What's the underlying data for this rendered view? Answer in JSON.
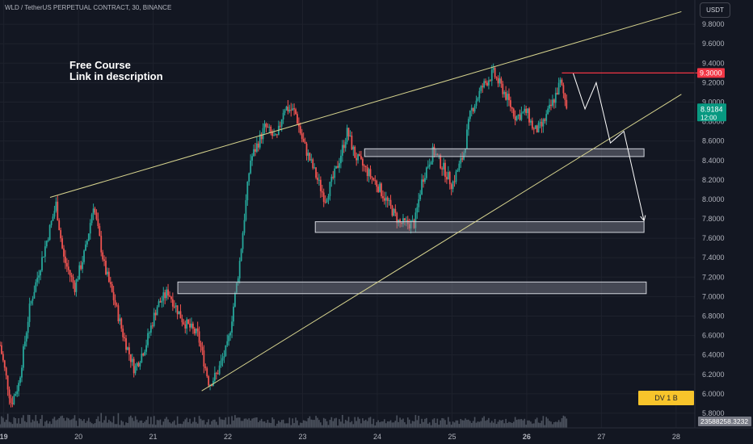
{
  "header": {
    "title": "WLD / TetherUS PERPETUAL CONTRACT, 30, BINANCE"
  },
  "annotation": {
    "line1": "Free Course",
    "line2": "Link in description"
  },
  "scale_button": "USDT",
  "badge": "DV 1 B",
  "price_labels": {
    "target": "9.3000",
    "target_color": "#f23645",
    "current": "8.9184",
    "countdown": "12:00",
    "current_color": "#089981"
  },
  "volume_label": "23588258.3232",
  "colors": {
    "up": "#26a69a",
    "down": "#ef5350",
    "channel": "#d8d58f",
    "projection": "#ffffff"
  },
  "chart_data": {
    "type": "candlestick",
    "title": "WLD / TetherUS PERPETUAL CONTRACT, 30, BINANCE",
    "y_ticks": [
      "9.8000",
      "9.6000",
      "9.4000",
      "9.2000",
      "9.0000",
      "8.8000",
      "8.6000",
      "8.4000",
      "8.2000",
      "8.0000",
      "7.8000",
      "7.6000",
      "7.4000",
      "7.2000",
      "7.0000",
      "6.8000",
      "6.6000",
      "6.4000",
      "6.2000",
      "6.0000",
      "5.8000"
    ],
    "x_ticks": [
      {
        "label": "19",
        "day": 19,
        "bold": true
      },
      {
        "label": "20",
        "day": 20
      },
      {
        "label": "21",
        "day": 21
      },
      {
        "label": "22",
        "day": 22
      },
      {
        "label": "23",
        "day": 23
      },
      {
        "label": "24",
        "day": 24
      },
      {
        "label": "25",
        "day": 25
      },
      {
        "label": "26",
        "day": 26,
        "bold": true
      },
      {
        "label": "27",
        "day": 27
      },
      {
        "label": "28",
        "day": 28
      }
    ],
    "ylim": [
      5.65,
      10.05
    ],
    "xlim": [
      18.95,
      28.25
    ],
    "price_path": [
      [
        18.95,
        6.5
      ],
      [
        19.1,
        5.9
      ],
      [
        19.2,
        6.1
      ],
      [
        19.35,
        6.9
      ],
      [
        19.55,
        7.5
      ],
      [
        19.7,
        7.95
      ],
      [
        19.8,
        7.4
      ],
      [
        19.95,
        7.1
      ],
      [
        20.1,
        7.5
      ],
      [
        20.2,
        7.95
      ],
      [
        20.35,
        7.3
      ],
      [
        20.5,
        6.9
      ],
      [
        20.6,
        6.6
      ],
      [
        20.75,
        6.25
      ],
      [
        20.9,
        6.5
      ],
      [
        21.05,
        6.9
      ],
      [
        21.2,
        7.05
      ],
      [
        21.4,
        6.75
      ],
      [
        21.6,
        6.6
      ],
      [
        21.75,
        6.1
      ],
      [
        21.85,
        6.2
      ],
      [
        22.0,
        6.5
      ],
      [
        22.15,
        7.3
      ],
      [
        22.3,
        8.4
      ],
      [
        22.5,
        8.75
      ],
      [
        22.65,
        8.6
      ],
      [
        22.75,
        8.95
      ],
      [
        22.9,
        8.9
      ],
      [
        23.0,
        8.6
      ],
      [
        23.15,
        8.3
      ],
      [
        23.3,
        8.0
      ],
      [
        23.45,
        8.3
      ],
      [
        23.6,
        8.7
      ],
      [
        23.7,
        8.45
      ],
      [
        23.85,
        8.3
      ],
      [
        24.0,
        8.15
      ],
      [
        24.15,
        7.95
      ],
      [
        24.3,
        7.75
      ],
      [
        24.5,
        7.75
      ],
      [
        24.6,
        8.2
      ],
      [
        24.75,
        8.5
      ],
      [
        24.9,
        8.3
      ],
      [
        25.0,
        8.15
      ],
      [
        25.15,
        8.45
      ],
      [
        25.25,
        8.9
      ],
      [
        25.4,
        9.15
      ],
      [
        25.55,
        9.3
      ],
      [
        25.7,
        9.1
      ],
      [
        25.85,
        8.85
      ],
      [
        26.0,
        8.9
      ],
      [
        26.1,
        8.7
      ],
      [
        26.2,
        8.75
      ],
      [
        26.35,
        9.0
      ],
      [
        26.45,
        9.2
      ],
      [
        26.55,
        8.92
      ]
    ],
    "support_zones": [
      {
        "y0": 8.44,
        "y1": 8.52,
        "x0": 23.83,
        "x1": 27.57
      },
      {
        "y0": 7.66,
        "y1": 7.77,
        "x0": 23.17,
        "x1": 27.57
      },
      {
        "y0": 7.03,
        "y1": 7.15,
        "x0": 21.33,
        "x1": 27.6
      }
    ],
    "channel_upper": [
      [
        19.62,
        8.02
      ],
      [
        28.07,
        9.93
      ]
    ],
    "channel_lower": [
      [
        21.65,
        6.03
      ],
      [
        28.07,
        9.08
      ]
    ],
    "projection": [
      [
        26.62,
        9.3
      ],
      [
        26.78,
        8.93
      ],
      [
        26.93,
        9.2
      ],
      [
        27.12,
        8.58
      ],
      [
        27.3,
        8.7
      ],
      [
        27.57,
        7.78
      ]
    ],
    "target_level": {
      "y": 9.3,
      "x0": 26.47
    }
  }
}
